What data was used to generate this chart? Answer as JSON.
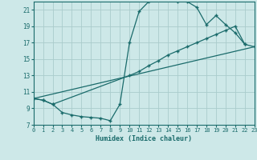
{
  "xlabel": "Humidex (Indice chaleur)",
  "xlim": [
    0,
    23
  ],
  "ylim": [
    7,
    22
  ],
  "yticks": [
    7,
    9,
    11,
    13,
    15,
    17,
    19,
    21
  ],
  "xticks": [
    0,
    1,
    2,
    3,
    4,
    5,
    6,
    7,
    8,
    9,
    10,
    11,
    12,
    13,
    14,
    15,
    16,
    17,
    18,
    19,
    20,
    21,
    22,
    23
  ],
  "bg_color": "#cde8e8",
  "line_color": "#1a6b6b",
  "grid_color": "#aacccc",
  "curve1_x": [
    0,
    1,
    2,
    3,
    4,
    5,
    6,
    7,
    8,
    9,
    10,
    11,
    12,
    13,
    14,
    15,
    16,
    17,
    18,
    19,
    20,
    21,
    22
  ],
  "curve1_y": [
    10.2,
    10.0,
    9.5,
    8.5,
    8.2,
    8.0,
    7.9,
    7.8,
    7.5,
    9.5,
    17.0,
    20.8,
    22.0,
    22.2,
    22.2,
    22.0,
    22.0,
    21.3,
    19.2,
    20.3,
    19.2,
    18.2,
    16.8
  ],
  "curve2_x": [
    0,
    1,
    2,
    10,
    11,
    12,
    13,
    14,
    15,
    16,
    17,
    18,
    19,
    20,
    21,
    22,
    23
  ],
  "curve2_y": [
    10.2,
    10.0,
    9.5,
    13.0,
    13.5,
    14.2,
    14.8,
    15.5,
    16.0,
    16.5,
    17.0,
    17.5,
    18.0,
    18.5,
    19.0,
    16.8,
    16.5
  ],
  "curve3_x": [
    0,
    23
  ],
  "curve3_y": [
    10.2,
    16.5
  ]
}
